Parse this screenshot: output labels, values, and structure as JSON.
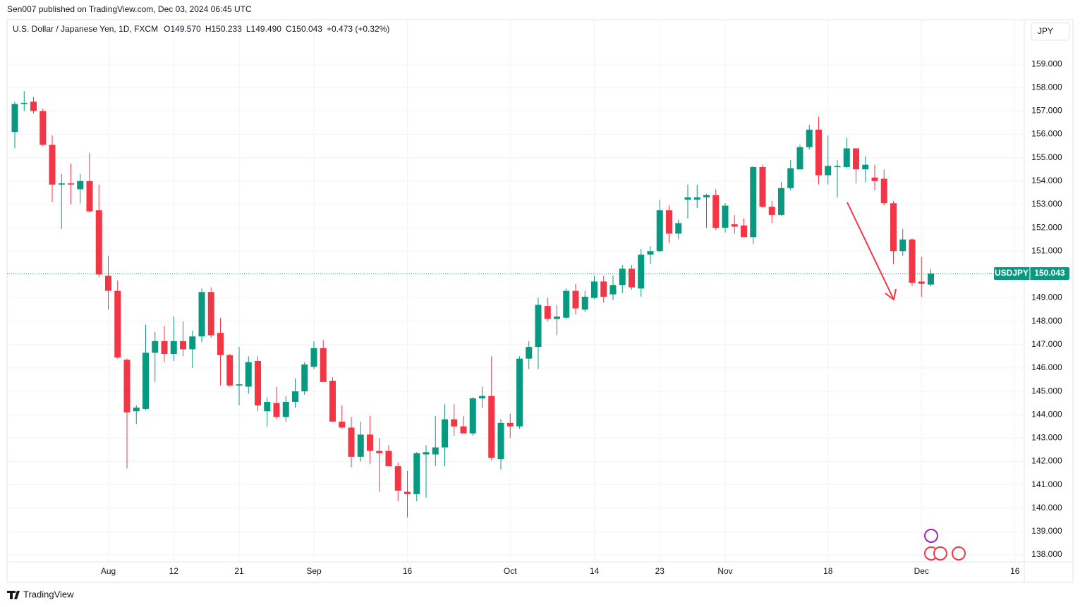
{
  "header": {
    "published": "Sen007 published on TradingView.com, Dec 03, 2024 06:45 UTC",
    "footer": "TradingView"
  },
  "chart_data": {
    "type": "candlestick",
    "symbol": "U.S. Dollar / Japanese Yen, 1D, FXCM",
    "ohlc_labels": [
      "O149.570",
      "H150.233",
      "L149.490",
      "C150.043",
      "+0.473 (+0.32%)"
    ],
    "currency": "JPY",
    "up_color": "#089981",
    "down_color": "#f23645",
    "open": [
      156.1,
      157.3,
      157.4,
      157.0,
      155.55,
      153.85,
      153.9,
      153.65,
      154.0,
      152.75,
      149.95,
      149.3,
      146.35,
      144.15,
      144.25,
      146.65,
      147.15,
      146.6,
      147.15,
      146.8,
      147.35,
      149.25,
      147.5,
      146.55,
      145.25,
      145.2,
      146.3,
      144.15,
      144.5,
      143.9,
      144.55,
      145.0,
      146.05,
      146.85,
      145.45,
      143.7,
      143.45,
      142.2,
      143.15,
      142.45,
      142.45,
      141.8,
      140.7,
      140.6,
      142.3,
      142.3,
      142.6,
      143.8,
      143.5,
      143.2,
      144.7,
      144.8,
      142.1,
      143.65,
      143.5,
      146.4,
      146.9,
      148.65,
      148.1,
      148.15,
      149.3,
      148.5,
      149.0,
      149.7,
      149.15,
      149.55,
      150.25,
      149.4,
      150.85,
      151.0,
      152.75,
      151.75,
      153.2,
      153.2,
      153.3,
      153.4,
      152.0,
      152.15,
      152.1,
      151.6,
      154.6,
      152.9,
      152.55,
      153.7,
      154.5,
      155.45,
      156.2,
      154.25,
      154.6,
      154.6,
      155.4,
      154.5,
      154.15,
      154.1,
      153.05,
      151.0,
      151.5,
      149.7,
      149.57
    ],
    "high": [
      157.4,
      157.85,
      157.6,
      157.1,
      155.95,
      154.3,
      154.75,
      154.3,
      155.2,
      153.85,
      150.8,
      149.75,
      146.4,
      144.4,
      147.85,
      147.55,
      147.8,
      148.2,
      148.0,
      147.6,
      149.4,
      149.45,
      148.15,
      146.6,
      146.9,
      146.5,
      146.5,
      144.75,
      145.2,
      144.8,
      145.55,
      146.25,
      147.15,
      147.2,
      145.6,
      144.4,
      143.9,
      143.7,
      143.95,
      143.0,
      142.7,
      141.95,
      141.6,
      142.4,
      142.7,
      143.95,
      144.45,
      144.45,
      143.95,
      144.75,
      145.2,
      146.5,
      143.8,
      144.05,
      146.5,
      147.15,
      149.0,
      149.0,
      148.7,
      149.4,
      149.6,
      149.3,
      149.95,
      149.95,
      149.95,
      150.4,
      150.4,
      151.1,
      151.2,
      153.2,
      152.95,
      152.35,
      153.85,
      153.85,
      153.45,
      153.65,
      153.05,
      152.55,
      152.4,
      154.65,
      154.7,
      153.15,
      153.95,
      154.9,
      155.55,
      156.4,
      156.75,
      155.95,
      154.9,
      155.85,
      155.4,
      155.05,
      154.7,
      154.5,
      153.15,
      151.95,
      151.55,
      150.75,
      150.233
    ],
    "low": [
      155.4,
      157.0,
      156.9,
      155.5,
      153.1,
      151.95,
      153.0,
      153.05,
      152.65,
      149.9,
      148.5,
      146.4,
      141.7,
      143.6,
      144.2,
      145.4,
      146.25,
      146.3,
      146.5,
      146.0,
      147.1,
      147.3,
      145.25,
      145.2,
      144.4,
      144.9,
      144.15,
      143.5,
      143.8,
      143.7,
      144.3,
      144.85,
      145.95,
      145.4,
      143.7,
      143.4,
      141.75,
      142.0,
      141.9,
      140.7,
      141.8,
      140.3,
      139.6,
      140.3,
      140.45,
      141.8,
      141.8,
      143.1,
      143.2,
      143.1,
      144.3,
      142.05,
      141.65,
      143.0,
      143.4,
      145.95,
      145.95,
      148.0,
      147.4,
      148.1,
      148.3,
      148.4,
      148.95,
      148.8,
      148.9,
      149.2,
      149.35,
      149.05,
      150.45,
      150.95,
      151.35,
      151.5,
      152.4,
      152.85,
      152.0,
      151.9,
      151.8,
      151.75,
      151.6,
      151.3,
      152.85,
      152.2,
      152.5,
      153.6,
      154.5,
      155.35,
      153.85,
      153.85,
      153.3,
      154.55,
      153.9,
      153.95,
      153.6,
      152.95,
      150.45,
      150.8,
      149.5,
      149.05,
      149.49
    ],
    "close": [
      157.3,
      157.35,
      157.0,
      155.55,
      153.85,
      153.9,
      153.85,
      154.0,
      152.7,
      150.0,
      149.3,
      146.45,
      144.1,
      144.3,
      146.65,
      147.15,
      146.6,
      147.15,
      146.8,
      147.35,
      149.25,
      147.4,
      146.55,
      145.25,
      145.3,
      146.25,
      144.4,
      144.55,
      143.9,
      144.55,
      145.0,
      146.15,
      146.85,
      145.4,
      143.7,
      143.45,
      142.2,
      143.15,
      142.45,
      142.35,
      141.8,
      140.75,
      140.6,
      142.35,
      142.4,
      142.6,
      143.8,
      143.5,
      143.2,
      144.7,
      144.8,
      142.15,
      143.65,
      143.5,
      146.4,
      146.9,
      148.7,
      148.1,
      148.2,
      149.3,
      148.55,
      149.05,
      149.7,
      149.05,
      149.55,
      150.25,
      149.45,
      150.85,
      151.0,
      152.75,
      151.75,
      152.2,
      153.3,
      153.3,
      153.4,
      152.0,
      152.95,
      152.05,
      151.6,
      154.6,
      152.9,
      152.55,
      153.7,
      154.55,
      155.45,
      156.2,
      154.25,
      154.65,
      154.65,
      155.4,
      154.5,
      154.7,
      154.0,
      153.05,
      151.0,
      151.5,
      149.65,
      149.6,
      150.043
    ],
    "xlim": [
      -0.83,
      108.0
    ],
    "ylim": [
      137.7,
      160.0
    ],
    "xticks": [
      {
        "value": 10,
        "label": "Aug"
      },
      {
        "value": 17,
        "label": "12"
      },
      {
        "value": 24,
        "label": "21"
      },
      {
        "value": 32,
        "label": "Sep"
      },
      {
        "value": 42,
        "label": "16"
      },
      {
        "value": 53,
        "label": "Oct"
      },
      {
        "value": 62,
        "label": "14"
      },
      {
        "value": 69,
        "label": "23"
      },
      {
        "value": 76,
        "label": "Nov"
      },
      {
        "value": 87,
        "label": "18"
      },
      {
        "value": 97,
        "label": "Dec"
      },
      {
        "value": 107,
        "label": "16"
      }
    ],
    "yticks": [
      {
        "value": 138,
        "label": "138.000"
      },
      {
        "value": 139,
        "label": "139.000"
      },
      {
        "value": 140,
        "label": "140.000"
      },
      {
        "value": 141,
        "label": "141.000"
      },
      {
        "value": 142,
        "label": "142.000"
      },
      {
        "value": 143,
        "label": "143.000"
      },
      {
        "value": 144,
        "label": "144.000"
      },
      {
        "value": 145,
        "label": "145.000"
      },
      {
        "value": 146,
        "label": "146.000"
      },
      {
        "value": 147,
        "label": "147.000"
      },
      {
        "value": 148,
        "label": "148.000"
      },
      {
        "value": 149,
        "label": "149.000"
      },
      {
        "value": 150,
        "label": "150.000"
      },
      {
        "value": 151,
        "label": "151.000"
      },
      {
        "value": 152,
        "label": "152.000"
      },
      {
        "value": 153,
        "label": "153.000"
      },
      {
        "value": 154,
        "label": "154.000"
      },
      {
        "value": 155,
        "label": "155.000"
      },
      {
        "value": 156,
        "label": "156.000"
      },
      {
        "value": 157,
        "label": "157.000"
      },
      {
        "value": 158,
        "label": "158.000"
      },
      {
        "value": 159,
        "label": "159.000"
      }
    ],
    "grid": true,
    "last_price": {
      "name": "USDJPY",
      "value": 150.043,
      "label": "150.043"
    }
  }
}
